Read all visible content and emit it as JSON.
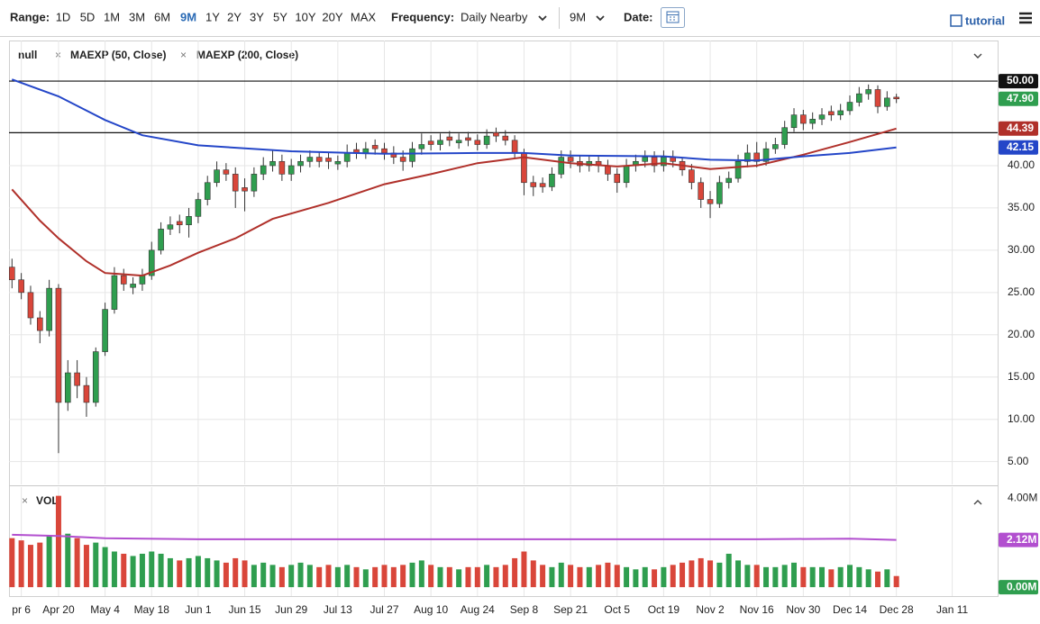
{
  "toolbar": {
    "range_label": "Range:",
    "ranges": [
      "1D",
      "5D",
      "1M",
      "3M",
      "6M",
      "9M",
      "1Y",
      "2Y",
      "3Y",
      "5Y",
      "10Y",
      "20Y",
      "MAX"
    ],
    "active_range": 5,
    "frequency_label": "Frequency:",
    "frequency": "Daily Nearby",
    "period": "9M",
    "date_label": "Date:",
    "tutorial": "tutorial"
  },
  "legend": {
    "symbol": "null",
    "studies": [
      "MAEXP (50, Close)",
      "MAEXP (200, Close)"
    ],
    "volume": "VOL"
  },
  "chart_data": {
    "type": "candlestick",
    "categories": [
      null,
      "pr 6",
      null,
      null,
      null,
      "Apr 20",
      null,
      null,
      null,
      null,
      "May 4",
      null,
      null,
      null,
      null,
      "May 18",
      null,
      null,
      null,
      null,
      "Jun 1",
      null,
      null,
      null,
      null,
      "Jun 15",
      null,
      null,
      null,
      null,
      "Jun 29",
      null,
      null,
      null,
      null,
      "Jul 13",
      null,
      null,
      null,
      null,
      "Jul 27",
      null,
      null,
      null,
      null,
      "Aug 10",
      null,
      null,
      null,
      null,
      "Aug 24",
      null,
      null,
      null,
      null,
      "Sep 8",
      null,
      null,
      null,
      null,
      "Sep 21",
      null,
      null,
      null,
      null,
      "Oct 5",
      null,
      null,
      null,
      null,
      "Oct 19",
      null,
      null,
      null,
      null,
      "Nov 2",
      null,
      null,
      null,
      null,
      "Nov 16",
      null,
      null,
      null,
      null,
      "Nov 30",
      null,
      null,
      null,
      null,
      "Dec 14",
      null,
      null,
      null,
      null,
      "Dec 28",
      null,
      null,
      null,
      null,
      null,
      "Jan 11"
    ],
    "candles": {
      "open": [
        28,
        26.5,
        25,
        22,
        20.5,
        25.5,
        12,
        15.5,
        14,
        12,
        18,
        23,
        27,
        25.6,
        26,
        27,
        30,
        32.5,
        33.4,
        33,
        34,
        36,
        38,
        39.5,
        39,
        37.4,
        37,
        39,
        40,
        40.5,
        39,
        40,
        40.5,
        41,
        40.9,
        40.2,
        40.5,
        41.9,
        41.5,
        42.4,
        42,
        41.5,
        41,
        40.5,
        42,
        42.9,
        42.5,
        43.4,
        42.7,
        43.3,
        43,
        42.5,
        43.9,
        43.5,
        43,
        41.5,
        38,
        37.9,
        37.5,
        39,
        41,
        40.5,
        40,
        40.5,
        40,
        39,
        38,
        40,
        40.5,
        41,
        40,
        41,
        40.5,
        39.5,
        38,
        36,
        35.5,
        38,
        38.5,
        40.5,
        41.5,
        40.5,
        42,
        42.5,
        44.5,
        46,
        45,
        45.5,
        46.4,
        46,
        46.5,
        47.5,
        48.5,
        49,
        47,
        48.1,
        null,
        null,
        null,
        null,
        null,
        null
      ],
      "high": [
        29,
        27.3,
        25.8,
        22.8,
        26.5,
        26,
        17,
        17,
        15,
        18.5,
        23.8,
        28,
        27.8,
        26.8,
        27.8,
        31,
        33.3,
        34,
        34.2,
        35,
        36.8,
        38.8,
        40.5,
        40.3,
        39.8,
        38.5,
        39.8,
        41,
        41.8,
        41.3,
        40.8,
        41.3,
        41.8,
        41.7,
        41.6,
        41.2,
        42.5,
        42.7,
        42.8,
        43.1,
        42.7,
        42.3,
        41.8,
        42.8,
        43.8,
        43.6,
        43.8,
        44.1,
        43.8,
        44,
        43.7,
        44.3,
        44.5,
        44.2,
        43.6,
        42,
        38.8,
        38.6,
        39.8,
        41.8,
        41.8,
        41.2,
        41.2,
        41.2,
        40.7,
        39.7,
        40.8,
        41.3,
        41.8,
        41.7,
        41.8,
        41.8,
        41,
        40.2,
        38.6,
        37,
        38.8,
        39.3,
        41.3,
        42.5,
        42.8,
        42.8,
        43.3,
        45.3,
        46.8,
        46.6,
        46.3,
        46.8,
        47.1,
        47.3,
        48.3,
        49.3,
        49.6,
        49.5,
        48.8,
        48.5,
        null,
        null,
        null,
        null,
        null,
        null
      ],
      "low": [
        25.5,
        24.2,
        21.2,
        19,
        19.8,
        6,
        11,
        12.5,
        10.3,
        11.5,
        17.5,
        22.5,
        25.2,
        24.8,
        25.2,
        26.5,
        29.5,
        31.8,
        32,
        31.5,
        33.2,
        35.3,
        37.5,
        38.2,
        35,
        34.6,
        36.3,
        38.3,
        39.3,
        38.2,
        38.2,
        39.2,
        39.8,
        39.8,
        39.6,
        39.5,
        39.8,
        40.8,
        40.8,
        41.3,
        40.7,
        40.2,
        39.4,
        39.8,
        41.3,
        41.8,
        41.8,
        42.3,
        42,
        42.3,
        41.8,
        42,
        42.8,
        42.4,
        40.8,
        36.5,
        36.4,
        36.8,
        37,
        38.5,
        39.7,
        39.2,
        39.3,
        39.2,
        38.2,
        36.8,
        37.4,
        39.3,
        39.8,
        39.2,
        39.3,
        39.8,
        38.8,
        37.2,
        35,
        33.8,
        35,
        37.3,
        38,
        39.8,
        39.8,
        40,
        41.4,
        42,
        44,
        44.2,
        44.3,
        44.8,
        45.3,
        45.4,
        46,
        47,
        47.8,
        46.2,
        46.5,
        47.4,
        null,
        null,
        null,
        null,
        null,
        null
      ],
      "close": [
        26.5,
        25,
        22,
        20.5,
        25.5,
        12,
        15.5,
        14,
        12,
        18,
        23,
        27,
        26,
        26,
        27,
        30,
        32.5,
        33,
        33,
        34,
        36,
        38,
        39.5,
        39,
        37,
        37,
        39,
        40,
        40.5,
        39,
        40,
        40.5,
        41,
        40.5,
        40.5,
        40.5,
        41.5,
        41.5,
        42,
        42,
        41.5,
        41,
        40.5,
        42,
        42.5,
        42.5,
        43,
        43,
        43,
        43,
        42.5,
        43.5,
        43.5,
        43,
        41.5,
        38,
        37.5,
        37.5,
        39,
        41,
        40.5,
        40,
        40.5,
        40,
        39,
        38,
        40,
        40.5,
        41,
        40,
        41,
        40.5,
        39.5,
        38,
        36,
        35.5,
        38,
        38.5,
        40.5,
        41.5,
        40.5,
        42,
        42.5,
        44.5,
        46,
        45,
        45.5,
        46,
        46,
        46.5,
        47.5,
        48.5,
        49,
        47,
        48,
        47.9,
        null,
        null,
        null,
        null,
        null,
        null
      ],
      "up_color": "#2f9e4f",
      "down_color": "#d9463a",
      "last_label": "47.90"
    },
    "lines": [
      {
        "name": "MAEXP (50, Close)",
        "color": "#b0302a",
        "x": [
          0,
          3,
          5,
          8,
          10,
          14,
          17,
          20,
          24,
          28,
          34,
          40,
          45,
          50,
          55,
          60,
          65,
          70,
          75,
          80,
          85,
          90,
          95
        ],
        "values": [
          37.2,
          33.5,
          31.4,
          28.7,
          27.3,
          27,
          28.2,
          29.7,
          31.4,
          33.7,
          35.6,
          37.8,
          39,
          40.3,
          41,
          40.3,
          39.9,
          40.3,
          39.6,
          40,
          41.3,
          42.8,
          44.39
        ]
      },
      {
        "name": "MAEXP (200, Close)",
        "color": "#2446c8",
        "x": [
          0,
          5,
          10,
          14,
          20,
          30,
          40,
          50,
          55,
          60,
          70,
          75,
          80,
          85,
          90,
          95
        ],
        "values": [
          50.2,
          48.2,
          45.4,
          43.6,
          42.4,
          41.7,
          41.4,
          41.5,
          41.5,
          41.2,
          41.1,
          40.7,
          40.6,
          41.1,
          41.5,
          42.15
        ]
      }
    ],
    "hlines": [
      {
        "value": 50,
        "label": "50.00"
      },
      {
        "value": 43.9
      }
    ],
    "ylim": [
      2.3,
      54.8
    ],
    "yticks": [
      {
        "value": 5,
        "label": "5.00"
      },
      {
        "value": 10,
        "label": "10.00"
      },
      {
        "value": 15,
        "label": "15.00"
      },
      {
        "value": 20,
        "label": "20.00"
      },
      {
        "value": 25,
        "label": "25.00"
      },
      {
        "value": 30,
        "label": "30.00"
      },
      {
        "value": 35,
        "label": "35.00"
      },
      {
        "value": 40,
        "label": "40.00"
      }
    ],
    "volume": {
      "values": [
        2.2,
        2.1,
        1.9,
        2.0,
        2.3,
        4.1,
        2.4,
        2.2,
        1.9,
        2.0,
        1.8,
        1.6,
        1.5,
        1.4,
        1.5,
        1.6,
        1.5,
        1.3,
        1.2,
        1.3,
        1.4,
        1.3,
        1.2,
        1.1,
        1.3,
        1.2,
        1.0,
        1.1,
        1.0,
        0.9,
        1.0,
        1.1,
        1.0,
        0.9,
        1.0,
        0.9,
        1.0,
        0.9,
        0.8,
        0.9,
        1.0,
        0.9,
        1.0,
        1.1,
        1.2,
        1.0,
        0.9,
        0.9,
        0.8,
        0.9,
        0.9,
        1.0,
        0.9,
        1.0,
        1.3,
        1.6,
        1.2,
        1.0,
        0.9,
        1.1,
        1.0,
        0.9,
        0.9,
        1.0,
        1.1,
        1.0,
        0.9,
        0.8,
        0.9,
        0.8,
        0.9,
        1.0,
        1.1,
        1.2,
        1.3,
        1.2,
        1.1,
        1.5,
        1.2,
        1.0,
        1.0,
        0.9,
        0.9,
        1.0,
        1.1,
        0.9,
        0.9,
        0.9,
        0.8,
        0.9,
        1.0,
        0.9,
        0.8,
        0.7,
        0.8,
        0.5,
        null,
        null,
        null,
        null,
        null,
        null
      ],
      "ylim": [
        -0.4,
        4.53
      ],
      "yticks": [
        {
          "value": 0,
          "label": "0.00M"
        },
        {
          "value": 4,
          "label": "4.00M"
        }
      ],
      "average": {
        "color": "#b24fcf",
        "x": [
          0,
          5,
          10,
          20,
          40,
          60,
          80,
          90,
          95
        ],
        "values": [
          2.35,
          2.3,
          2.2,
          2.15,
          2.15,
          2.15,
          2.15,
          2.18,
          2.12
        ],
        "value_labels": [
          null,
          null,
          null,
          null,
          null,
          null,
          null,
          null,
          "2.12M"
        ]
      }
    },
    "grid": true
  }
}
